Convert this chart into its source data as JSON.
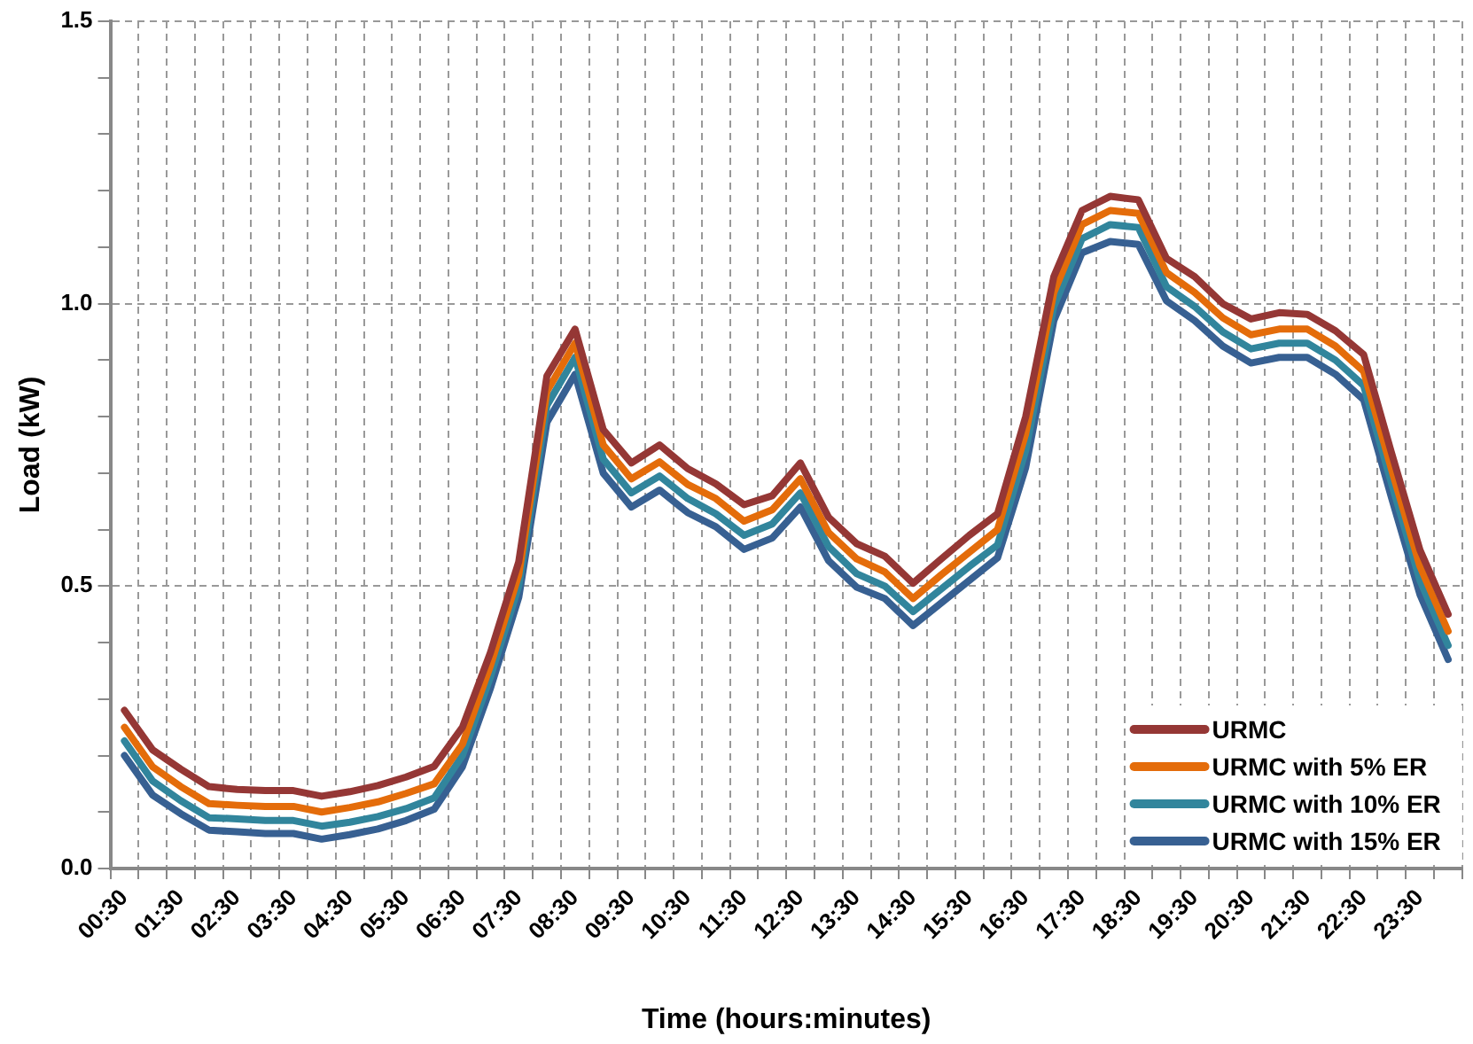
{
  "chart_data": {
    "type": "line",
    "xlabel": "Time (hours:minutes)",
    "ylabel": "Load (kW)",
    "categories": [
      "00:30",
      null,
      "01:30",
      null,
      "02:30",
      null,
      "03:30",
      null,
      "04:30",
      null,
      "05:30",
      null,
      "06:30",
      null,
      "07:30",
      null,
      "08:30",
      null,
      "09:30",
      null,
      "10:30",
      null,
      "11:30",
      null,
      "12:30",
      null,
      "13:30",
      null,
      "14:30",
      null,
      "15:30",
      null,
      "16:30",
      null,
      "17:30",
      null,
      "18:30",
      null,
      "19:30",
      null,
      "20:30",
      null,
      "21:30",
      null,
      "22:30",
      null,
      "23:30",
      null
    ],
    "series": [
      {
        "name": "URMC",
        "color": "#953735",
        "values": [
          0.28,
          0.21,
          0.176,
          0.145,
          0.14,
          0.138,
          0.138,
          0.128,
          0.136,
          0.147,
          0.162,
          0.181,
          0.25,
          0.383,
          0.543,
          0.872,
          0.955,
          0.777,
          0.718,
          0.75,
          0.708,
          0.681,
          0.644,
          0.66,
          0.718,
          0.622,
          0.575,
          0.553,
          0.505,
          0.548,
          0.59,
          0.628,
          0.8,
          1.048,
          1.165,
          1.19,
          1.184,
          1.08,
          1.048,
          1.0,
          0.973,
          0.984,
          0.981,
          0.952,
          0.91,
          0.734,
          0.564,
          0.45
        ]
      },
      {
        "name": "URMC with 5% ER",
        "color": "#e46c0a",
        "values": [
          0.25,
          0.18,
          0.145,
          0.115,
          0.112,
          0.11,
          0.11,
          0.1,
          0.108,
          0.118,
          0.133,
          0.15,
          0.22,
          0.36,
          0.52,
          0.845,
          0.93,
          0.75,
          0.69,
          0.72,
          0.68,
          0.655,
          0.615,
          0.635,
          0.69,
          0.595,
          0.548,
          0.525,
          0.478,
          0.52,
          0.56,
          0.6,
          0.77,
          1.02,
          1.14,
          1.165,
          1.16,
          1.055,
          1.02,
          0.975,
          0.945,
          0.955,
          0.955,
          0.925,
          0.88,
          0.705,
          0.535,
          0.42
        ]
      },
      {
        "name": "URMC with 10% ER",
        "color": "#31859c",
        "values": [
          0.226,
          0.155,
          0.12,
          0.09,
          0.088,
          0.085,
          0.085,
          0.075,
          0.082,
          0.092,
          0.106,
          0.125,
          0.2,
          0.34,
          0.5,
          0.82,
          0.905,
          0.725,
          0.665,
          0.695,
          0.655,
          0.628,
          0.59,
          0.61,
          0.665,
          0.57,
          0.522,
          0.5,
          0.455,
          0.495,
          0.535,
          0.573,
          0.74,
          0.995,
          1.115,
          1.14,
          1.135,
          1.03,
          0.995,
          0.95,
          0.92,
          0.93,
          0.93,
          0.9,
          0.855,
          0.68,
          0.51,
          0.395
        ]
      },
      {
        "name": "URMC with 15% ER",
        "color": "#376092",
        "values": [
          0.2,
          0.13,
          0.097,
          0.068,
          0.065,
          0.062,
          0.062,
          0.052,
          0.06,
          0.07,
          0.085,
          0.105,
          0.18,
          0.32,
          0.48,
          0.79,
          0.875,
          0.7,
          0.64,
          0.67,
          0.63,
          0.605,
          0.565,
          0.585,
          0.64,
          0.545,
          0.498,
          0.478,
          0.43,
          0.47,
          0.51,
          0.55,
          0.71,
          0.97,
          1.09,
          1.11,
          1.105,
          1.005,
          0.97,
          0.925,
          0.895,
          0.905,
          0.905,
          0.875,
          0.83,
          0.655,
          0.485,
          0.37
        ]
      }
    ],
    "ylim": [
      0,
      1.5
    ],
    "yticks": [
      {
        "value": 0,
        "label": "0.0"
      },
      {
        "value": 0.1,
        "label": null
      },
      {
        "value": 0.2,
        "label": null
      },
      {
        "value": 0.3,
        "label": null
      },
      {
        "value": 0.4,
        "label": null
      },
      {
        "value": 0.5,
        "label": "0.5"
      },
      {
        "value": 0.6,
        "label": null
      },
      {
        "value": 0.7,
        "label": null
      },
      {
        "value": 0.8,
        "label": null
      },
      {
        "value": 0.9,
        "label": null
      },
      {
        "value": 1,
        "label": "1.0"
      },
      {
        "value": 1.1,
        "label": null
      },
      {
        "value": 1.2,
        "label": null
      },
      {
        "value": 1.3,
        "label": null
      },
      {
        "value": 1.4,
        "label": null
      },
      {
        "value": 1.5,
        "label": "1.5"
      }
    ],
    "grid": true,
    "legend": "bottom right",
    "marker": "none",
    "line_style": "solid"
  }
}
